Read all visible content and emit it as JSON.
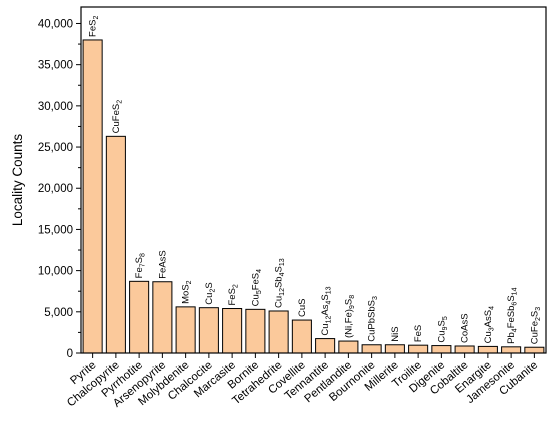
{
  "chart_data": {
    "type": "bar",
    "ylabel": "Locality Counts",
    "xlabel": "",
    "ylim": [
      0,
      42000
    ],
    "yticks": [
      0,
      5000,
      10000,
      15000,
      20000,
      25000,
      30000,
      35000,
      40000
    ],
    "ytick_labels": [
      "0",
      "5,000",
      "10,000",
      "15,000",
      "20,000",
      "25,000",
      "30,000",
      "35,000",
      "40,000"
    ],
    "grid": false,
    "bar_color": "#fbc99b",
    "bar_edge_color": "#000000",
    "categories": [
      "Pyrite",
      "Chalcopyrite",
      "Pyrrhotite",
      "Arsenopyrite",
      "Molybdenite",
      "Chalcocite",
      "Marcasite",
      "Bornite",
      "Tetrahedrite",
      "Covellite",
      "Tennantite",
      "Pentlandite",
      "Bournonite",
      "Millerite",
      "Troilite",
      "Digenite",
      "Cobaltite",
      "Enargite",
      "Jamesonite",
      "Cubanite"
    ],
    "values": [
      38000,
      26300,
      8700,
      8650,
      5600,
      5500,
      5400,
      5300,
      5100,
      4000,
      1750,
      1450,
      1000,
      1000,
      950,
      900,
      850,
      800,
      750,
      700
    ],
    "bar_labels": [
      [
        {
          "t": "FeS"
        },
        {
          "t": "2",
          "sub": true
        }
      ],
      [
        {
          "t": "CuFeS"
        },
        {
          "t": "2",
          "sub": true
        }
      ],
      [
        {
          "t": "Fe"
        },
        {
          "t": "7",
          "sub": true
        },
        {
          "t": "S"
        },
        {
          "t": "8",
          "sub": true
        }
      ],
      [
        {
          "t": "FeAsS"
        }
      ],
      [
        {
          "t": "MoS"
        },
        {
          "t": "2",
          "sub": true
        }
      ],
      [
        {
          "t": "Cu"
        },
        {
          "t": "2",
          "sub": true
        },
        {
          "t": "S"
        }
      ],
      [
        {
          "t": "FeS"
        },
        {
          "t": "2",
          "sub": true
        }
      ],
      [
        {
          "t": "Cu"
        },
        {
          "t": "5",
          "sub": true
        },
        {
          "t": "FeS"
        },
        {
          "t": "4",
          "sub": true
        }
      ],
      [
        {
          "t": "Cu"
        },
        {
          "t": "12",
          "sub": true
        },
        {
          "t": "Sb"
        },
        {
          "t": "4",
          "sub": true
        },
        {
          "t": "S"
        },
        {
          "t": "13",
          "sub": true
        }
      ],
      [
        {
          "t": "CuS"
        }
      ],
      [
        {
          "t": "Cu"
        },
        {
          "t": "12",
          "sub": true
        },
        {
          "t": "As"
        },
        {
          "t": "4",
          "sub": true
        },
        {
          "t": "S"
        },
        {
          "t": "13",
          "sub": true
        }
      ],
      [
        {
          "t": "(Ni,Fe)"
        },
        {
          "t": "9",
          "sub": true
        },
        {
          "t": "S"
        },
        {
          "t": "8",
          "sub": true
        }
      ],
      [
        {
          "t": "CuPbSbS"
        },
        {
          "t": "3",
          "sub": true
        }
      ],
      [
        {
          "t": "NiS"
        }
      ],
      [
        {
          "t": "FeS"
        }
      ],
      [
        {
          "t": "Cu"
        },
        {
          "t": "9",
          "sub": true
        },
        {
          "t": "S"
        },
        {
          "t": "5",
          "sub": true
        }
      ],
      [
        {
          "t": "CoAsS"
        }
      ],
      [
        {
          "t": "Cu"
        },
        {
          "t": "3",
          "sub": true
        },
        {
          "t": "AsS"
        },
        {
          "t": "4",
          "sub": true
        }
      ],
      [
        {
          "t": "Pb"
        },
        {
          "t": "4",
          "sub": true
        },
        {
          "t": "FeSb"
        },
        {
          "t": "6",
          "sub": true
        },
        {
          "t": "S"
        },
        {
          "t": "14",
          "sub": true
        }
      ],
      [
        {
          "t": "CuFe"
        },
        {
          "t": "2",
          "sub": true
        },
        {
          "t": "S"
        },
        {
          "t": "3",
          "sub": true
        }
      ]
    ]
  }
}
